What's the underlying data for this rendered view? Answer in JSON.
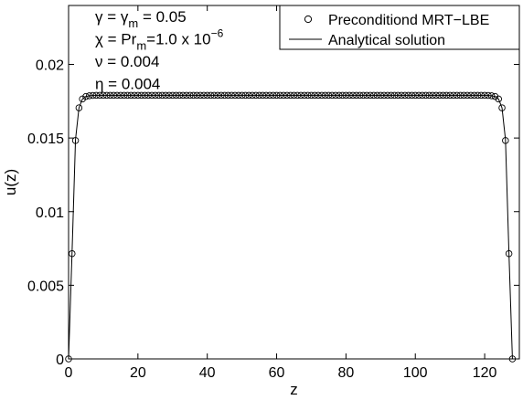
{
  "chart_data": {
    "type": "line",
    "xlabel": "z",
    "ylabel": "u(z)",
    "xlim": [
      0,
      130
    ],
    "ylim": [
      0,
      0.024
    ],
    "xticks": [
      0,
      20,
      40,
      60,
      80,
      100,
      120
    ],
    "xtick_labels": [
      "0",
      "20",
      "40",
      "60",
      "80",
      "100",
      "120"
    ],
    "yticks": [
      0,
      0.005,
      0.01,
      0.015,
      0.02
    ],
    "ytick_labels": [
      "0",
      "0.005",
      "0.01",
      "0.015",
      "0.02"
    ],
    "grid": false,
    "legend_position": "top-right",
    "annotations": [
      {
        "parts": [
          [
            "γ = γ",
            ""
          ],
          [
            "m",
            "sub"
          ],
          [
            " = 0.05",
            ""
          ]
        ]
      },
      {
        "parts": [
          [
            "χ = Pr",
            ""
          ],
          [
            "m",
            "sub"
          ],
          [
            "=1.0 x 10",
            ""
          ],
          [
            "−6",
            "sup"
          ]
        ]
      },
      {
        "parts": [
          [
            "ν = 0.004",
            ""
          ]
        ]
      },
      {
        "parts": [
          [
            "η = 0.004",
            ""
          ]
        ]
      }
    ],
    "series": [
      {
        "name": "Preconditiond MRT−LBE",
        "marker": "circle",
        "plateau": 0.0179,
        "x_start": 0,
        "x_end": 128,
        "step": 1,
        "edge_values": [
          0,
          0.00715,
          0.01483,
          0.01705,
          0.01765,
          0.01782,
          0.01787,
          0.01789
        ]
      },
      {
        "name": "Analytical solution",
        "marker": "line",
        "plateau": 0.0179,
        "x_start": 0,
        "x_end": 128,
        "edge_values": [
          0,
          0.0072,
          0.0149,
          0.01705,
          0.01765,
          0.01782,
          0.01787,
          0.01789
        ]
      }
    ]
  }
}
